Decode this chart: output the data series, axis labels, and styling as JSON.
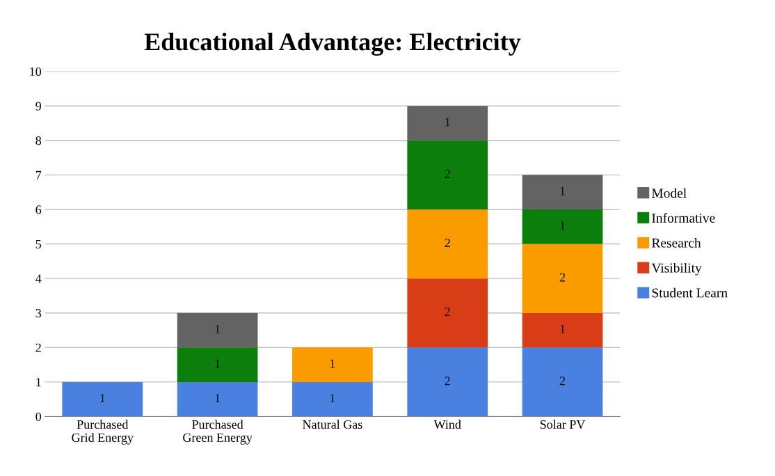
{
  "chart_data": {
    "type": "bar",
    "title": "Educational Advantage: Electricity",
    "stacked": true,
    "categories": [
      "Purchased Grid Energy",
      "Purchased Green Energy",
      "Natural Gas",
      "Wind",
      "Solar PV"
    ],
    "series": [
      {
        "name": "Student Learn",
        "color": "#4a80e0",
        "values": [
          1,
          1,
          1,
          2,
          2
        ]
      },
      {
        "name": "Visibility",
        "color": "#d93d17",
        "values": [
          null,
          null,
          null,
          2,
          1
        ]
      },
      {
        "name": "Research",
        "color": "#fa9b00",
        "values": [
          null,
          null,
          1,
          2,
          2
        ]
      },
      {
        "name": "Informative",
        "color": "#0c7e0c",
        "values": [
          null,
          1,
          null,
          2,
          1
        ]
      },
      {
        "name": "Model",
        "color": "#636363",
        "values": [
          null,
          1,
          null,
          1,
          1
        ]
      }
    ],
    "ylim": [
      0,
      10
    ],
    "yticks": [
      0,
      1,
      2,
      3,
      4,
      5,
      6,
      7,
      8,
      9,
      10
    ],
    "grid": "y",
    "legend": "right",
    "data_labels": true
  }
}
